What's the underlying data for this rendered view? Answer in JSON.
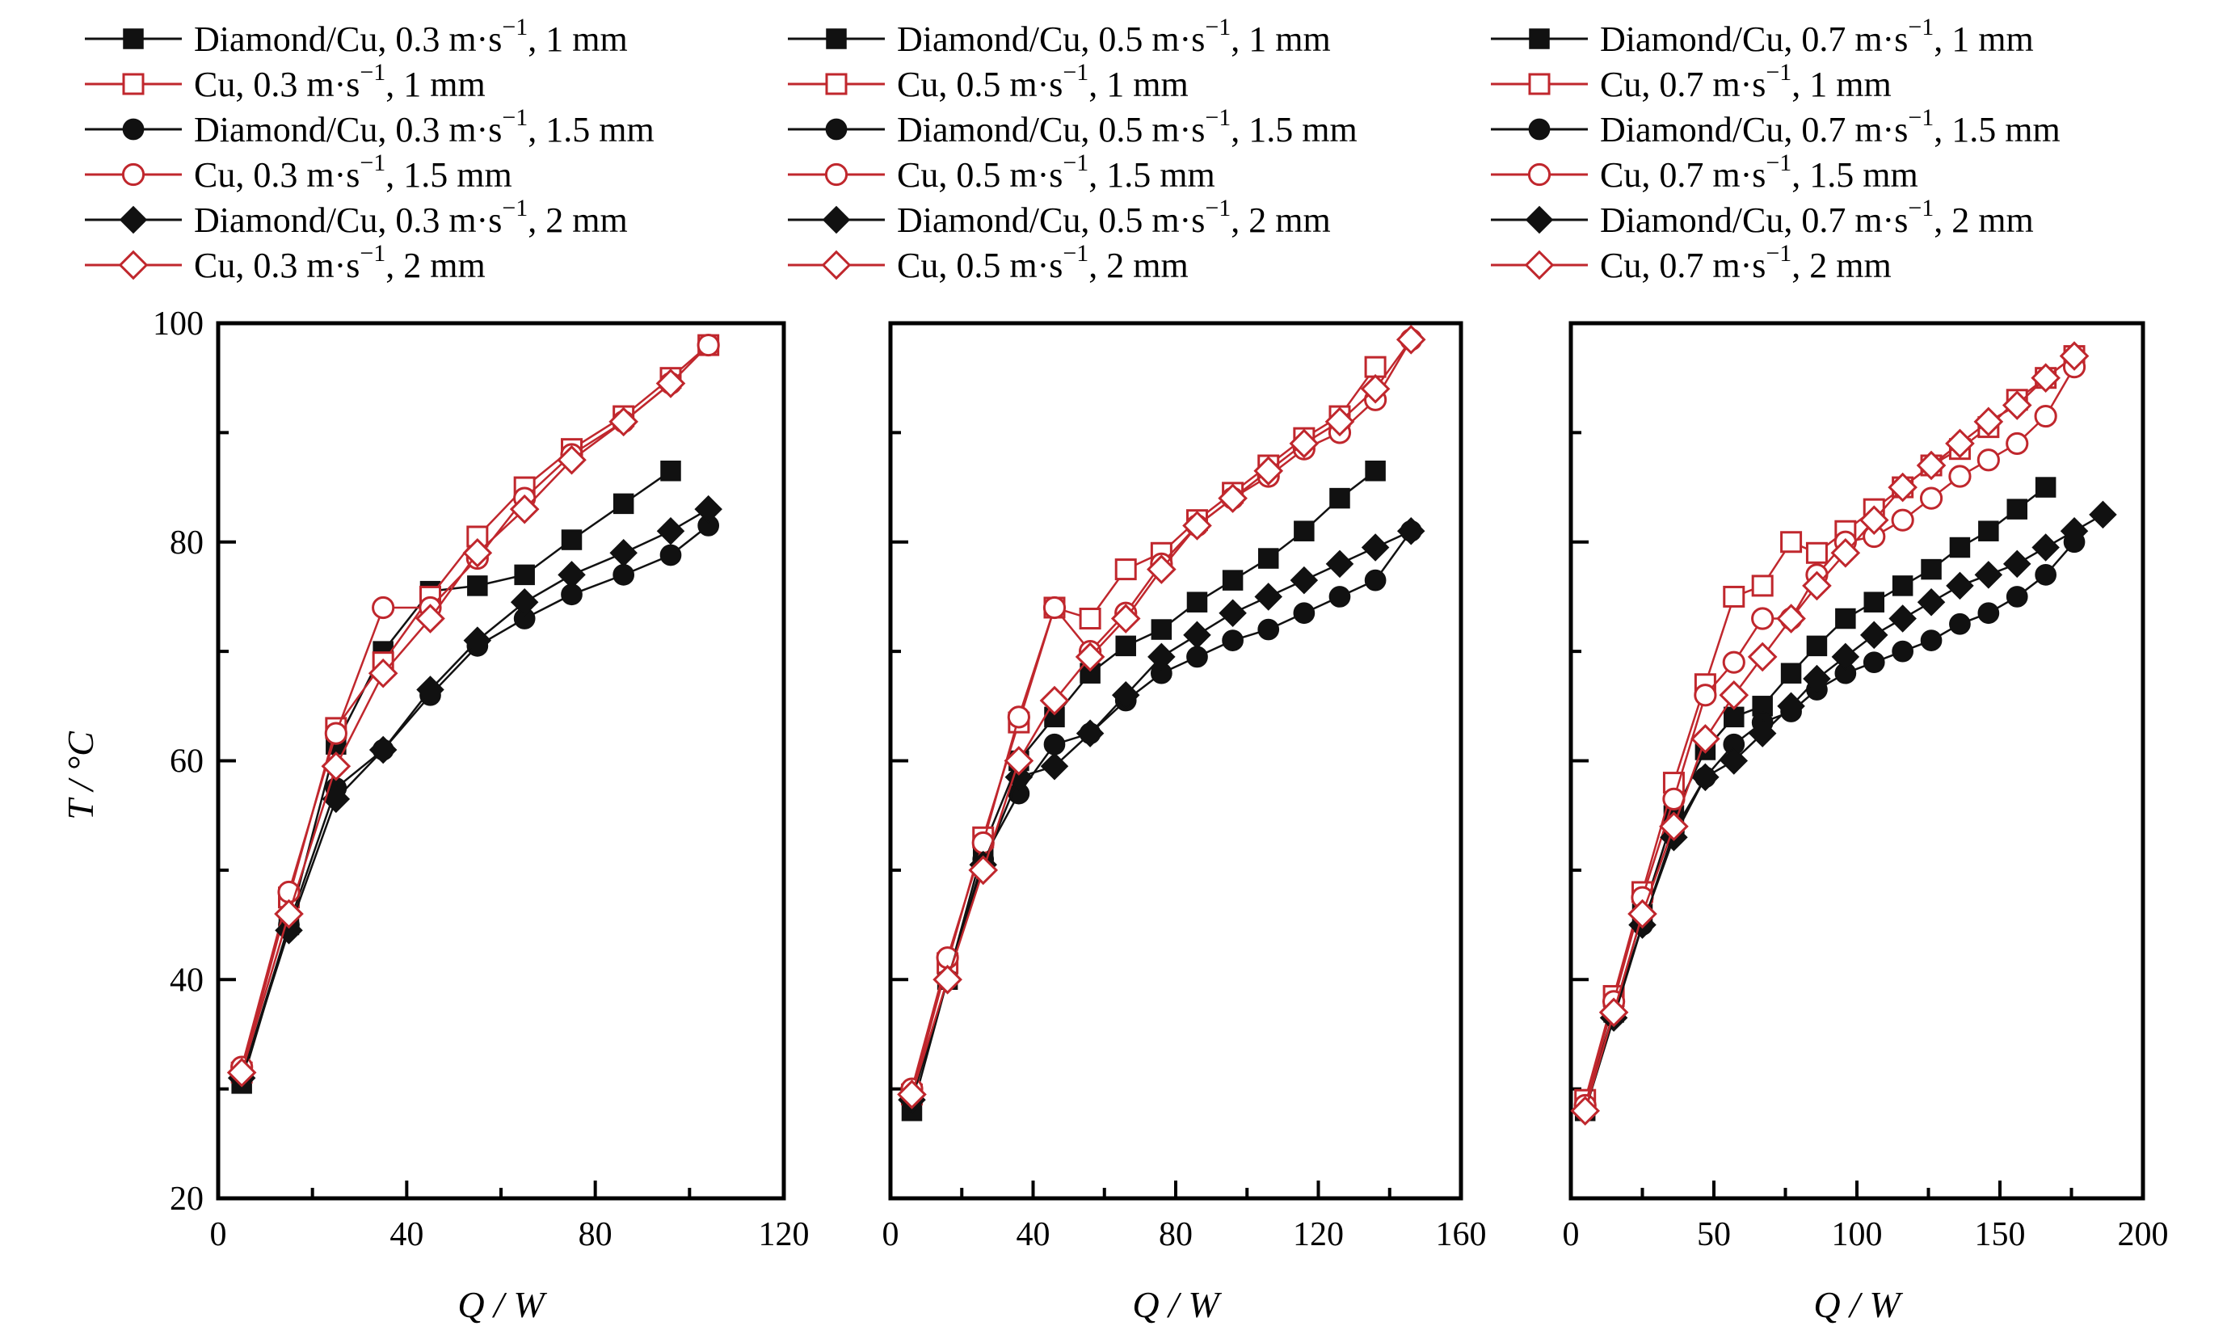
{
  "ylabel": "T / °C",
  "xlabel": "Q / W",
  "colors": {
    "diamond": "#111111",
    "cu": "#c0272d"
  },
  "chart_data": [
    {
      "type": "line",
      "velocity": "0.3",
      "xlabel": "Q / W",
      "ylabel": "T / °C",
      "xlim": [
        0,
        120
      ],
      "ylim": [
        20,
        100
      ],
      "xticks": [
        0,
        40,
        80,
        120
      ],
      "yticks": [
        20,
        40,
        60,
        80,
        100
      ],
      "legend": [
        "Diamond/Cu, 0.3 m·s⁻¹, 1 mm",
        "Cu, 0.3 m·s⁻¹, 1 mm",
        "Diamond/Cu, 0.3 m·s⁻¹, 1.5 mm",
        "Cu, 0.3 m·s⁻¹, 1.5 mm",
        "Diamond/Cu, 0.3 m·s⁻¹, 2 mm",
        "Cu, 0.3 m·s⁻¹, 2 mm"
      ],
      "series": [
        {
          "material": "Diamond/Cu",
          "thickness": "1 mm",
          "marker": "square",
          "filled": true,
          "x": [
            5,
            15,
            25,
            35,
            45,
            55,
            65,
            75,
            86,
            96
          ],
          "y": [
            30.5,
            45,
            61.5,
            70,
            75.5,
            76,
            77,
            80.2,
            83.5,
            86.5
          ]
        },
        {
          "material": "Cu",
          "thickness": "1 mm",
          "marker": "square",
          "filled": false,
          "x": [
            5,
            15,
            25,
            35,
            45,
            55,
            65,
            75,
            86,
            96,
            104
          ],
          "y": [
            31.5,
            47.5,
            63,
            69,
            75,
            80.5,
            85,
            88.5,
            91.5,
            95,
            98
          ]
        },
        {
          "material": "Diamond/Cu",
          "thickness": "1.5 mm",
          "marker": "circle",
          "filled": true,
          "x": [
            5,
            15,
            25,
            35,
            45,
            55,
            65,
            75,
            86,
            96,
            104
          ],
          "y": [
            31,
            45,
            57.5,
            61,
            66,
            70.5,
            73,
            75.2,
            77,
            78.8,
            81.5
          ]
        },
        {
          "material": "Cu",
          "thickness": "1.5 mm",
          "marker": "circle",
          "filled": false,
          "x": [
            5,
            15,
            25,
            35,
            45,
            55,
            65,
            75,
            86,
            96,
            104
          ],
          "y": [
            32,
            48,
            62.5,
            74,
            74,
            78.5,
            84,
            88,
            91,
            94.5,
            98
          ]
        },
        {
          "material": "Diamond/Cu",
          "thickness": "2 mm",
          "marker": "diamond",
          "filled": true,
          "x": [
            5,
            15,
            25,
            35,
            45,
            55,
            65,
            75,
            86,
            96,
            104
          ],
          "y": [
            31,
            44.5,
            56.5,
            61,
            66.5,
            71,
            74.5,
            77,
            79,
            81,
            83
          ]
        },
        {
          "material": "Cu",
          "thickness": "2 mm",
          "marker": "diamond",
          "filled": false,
          "x": [
            5,
            15,
            25,
            35,
            45,
            55,
            65,
            75,
            86,
            96
          ],
          "y": [
            31.5,
            46,
            59.5,
            68,
            73,
            79,
            83,
            87.5,
            91,
            94.5
          ]
        }
      ]
    },
    {
      "type": "line",
      "velocity": "0.5",
      "xlabel": "Q / W",
      "ylabel": "",
      "xlim": [
        0,
        160
      ],
      "ylim": [
        20,
        100
      ],
      "xticks": [
        0,
        40,
        80,
        120,
        160
      ],
      "yticks": [
        20,
        40,
        60,
        80,
        100
      ],
      "legend": [
        "Diamond/Cu, 0.5 m·s⁻¹, 1 mm",
        "Cu, 0.5 m·s⁻¹, 1 mm",
        "Diamond/Cu, 0.5 m·s⁻¹, 1.5 mm",
        "Cu, 0.5 m·s⁻¹, 1.5 mm",
        "Diamond/Cu, 0.5 m·s⁻¹, 2 mm",
        "Cu, 0.5 m·s⁻¹, 2 mm"
      ],
      "series": [
        {
          "material": "Diamond/Cu",
          "thickness": "1 mm",
          "marker": "square",
          "filled": true,
          "x": [
            6,
            16,
            26,
            36,
            46,
            56,
            66,
            76,
            86,
            96,
            106,
            116,
            126,
            136
          ],
          "y": [
            28,
            40,
            52,
            60,
            64,
            68,
            70.5,
            72,
            74.5,
            76.5,
            78.5,
            81,
            84,
            86.5
          ]
        },
        {
          "material": "Cu",
          "thickness": "1 mm",
          "marker": "square",
          "filled": false,
          "x": [
            6,
            16,
            26,
            36,
            46,
            56,
            66,
            76,
            86,
            96,
            106,
            116,
            126,
            136
          ],
          "y": [
            29.5,
            41.5,
            53,
            63.5,
            74,
            73,
            77.5,
            79,
            82,
            84.5,
            87,
            89.5,
            91.5,
            96
          ]
        },
        {
          "material": "Diamond/Cu",
          "thickness": "1.5 mm",
          "marker": "circle",
          "filled": true,
          "x": [
            6,
            16,
            26,
            36,
            46,
            56,
            66,
            76,
            86,
            96,
            106,
            116,
            126,
            136,
            146
          ],
          "y": [
            29,
            40,
            51,
            57,
            61.5,
            62.5,
            65.5,
            68,
            69.5,
            71,
            72,
            73.5,
            75,
            76.5,
            81
          ]
        },
        {
          "material": "Cu",
          "thickness": "1.5 mm",
          "marker": "circle",
          "filled": false,
          "x": [
            6,
            16,
            26,
            36,
            46,
            56,
            66,
            76,
            86,
            96,
            106,
            116,
            126,
            136,
            146
          ],
          "y": [
            30,
            42,
            52.5,
            64,
            74,
            70,
            73.5,
            78,
            81.5,
            84,
            86,
            88.5,
            90,
            93,
            98.5
          ]
        },
        {
          "material": "Diamond/Cu",
          "thickness": "2 mm",
          "marker": "diamond",
          "filled": true,
          "x": [
            6,
            16,
            26,
            36,
            46,
            56,
            66,
            76,
            86,
            96,
            106,
            116,
            126,
            136,
            146
          ],
          "y": [
            29,
            40,
            50.5,
            58.5,
            59.5,
            62.5,
            66,
            69.5,
            71.5,
            73.5,
            75,
            76.5,
            78,
            79.5,
            81
          ]
        },
        {
          "material": "Cu",
          "thickness": "2 mm",
          "marker": "diamond",
          "filled": false,
          "x": [
            6,
            16,
            26,
            36,
            46,
            56,
            66,
            76,
            86,
            96,
            106,
            116,
            126,
            136,
            146
          ],
          "y": [
            29.5,
            40,
            50,
            60,
            65.5,
            69.5,
            73,
            77.5,
            81.5,
            84,
            86.5,
            89,
            91,
            94,
            98.5
          ]
        }
      ]
    },
    {
      "type": "line",
      "velocity": "0.7",
      "xlabel": "Q / W",
      "ylabel": "",
      "xlim": [
        0,
        200
      ],
      "ylim": [
        20,
        100
      ],
      "xticks": [
        0,
        50,
        100,
        150,
        200
      ],
      "yticks": [
        20,
        40,
        60,
        80,
        100
      ],
      "legend": [
        "Diamond/Cu, 0.7 m·s⁻¹, 1 mm",
        "Cu, 0.7 m·s⁻¹, 1 mm",
        "Diamond/Cu, 0.7 m·s⁻¹, 1.5 mm",
        "Cu, 0.7 m·s⁻¹, 1.5 mm",
        "Diamond/Cu, 0.7 m·s⁻¹, 2 mm",
        "Cu, 0.7 m·s⁻¹, 2 mm"
      ],
      "series": [
        {
          "material": "Diamond/Cu",
          "thickness": "1 mm",
          "marker": "square",
          "filled": true,
          "x": [
            5,
            15,
            25,
            36,
            47,
            57,
            67,
            77,
            86,
            96,
            106,
            116,
            126,
            136,
            146,
            156,
            166
          ],
          "y": [
            28,
            37,
            46,
            55,
            61,
            64,
            65,
            68,
            70.5,
            73,
            74.5,
            76,
            77.5,
            79.5,
            81,
            83,
            85
          ]
        },
        {
          "material": "Cu",
          "thickness": "1 mm",
          "marker": "square",
          "filled": false,
          "x": [
            5,
            15,
            25,
            36,
            47,
            57,
            67,
            77,
            86,
            96,
            106,
            116,
            126,
            136,
            146,
            156,
            166,
            176
          ],
          "y": [
            29,
            38.5,
            48,
            58,
            67,
            75,
            76,
            80,
            79,
            81,
            83,
            85,
            87,
            88.5,
            90.5,
            93,
            95,
            97
          ]
        },
        {
          "material": "Diamond/Cu",
          "thickness": "1.5 mm",
          "marker": "circle",
          "filled": true,
          "x": [
            5,
            15,
            25,
            36,
            47,
            57,
            67,
            77,
            86,
            96,
            106,
            116,
            126,
            136,
            146,
            156,
            166,
            176
          ],
          "y": [
            28.5,
            37,
            45,
            53.5,
            58.5,
            61.5,
            63.5,
            64.5,
            66.5,
            68,
            69,
            70,
            71,
            72.5,
            73.5,
            75,
            77,
            80
          ]
        },
        {
          "material": "Cu",
          "thickness": "1.5 mm",
          "marker": "circle",
          "filled": false,
          "x": [
            5,
            15,
            25,
            36,
            47,
            57,
            67,
            77,
            86,
            96,
            106,
            116,
            126,
            136,
            146,
            156,
            166,
            176
          ],
          "y": [
            28.5,
            38,
            47.5,
            56.5,
            66,
            69,
            73,
            73,
            77,
            80,
            80.5,
            82,
            84,
            86,
            87.5,
            89,
            91.5,
            96
          ]
        },
        {
          "material": "Diamond/Cu",
          "thickness": "2 mm",
          "marker": "diamond",
          "filled": true,
          "x": [
            5,
            15,
            25,
            36,
            47,
            57,
            67,
            77,
            86,
            96,
            106,
            116,
            126,
            136,
            146,
            156,
            166,
            176,
            186
          ],
          "y": [
            28,
            36.5,
            45,
            53,
            58.5,
            60,
            62.5,
            65,
            67.5,
            69.5,
            71.5,
            73,
            74.5,
            76,
            77,
            78,
            79.5,
            81,
            82.5
          ]
        },
        {
          "material": "Cu",
          "thickness": "2 mm",
          "marker": "diamond",
          "filled": false,
          "x": [
            5,
            15,
            25,
            36,
            47,
            57,
            67,
            77,
            86,
            96,
            106,
            116,
            126,
            136,
            146,
            156,
            166,
            176
          ],
          "y": [
            28,
            37,
            46,
            54,
            62,
            66,
            69.5,
            73,
            76,
            79,
            82,
            85,
            87,
            89,
            91,
            92.5,
            95,
            97
          ]
        }
      ]
    }
  ]
}
